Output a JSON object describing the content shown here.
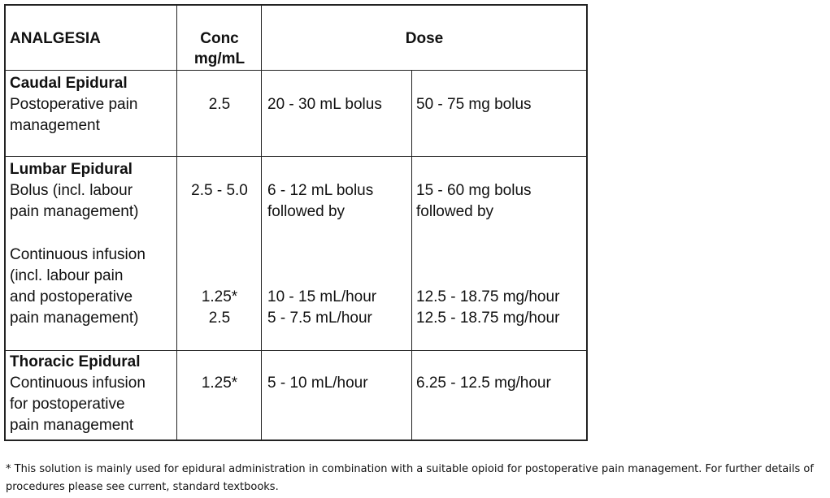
{
  "header": {
    "analgesia": "ANALGESIA",
    "conc": "Conc",
    "conc_unit": "mg/mL",
    "dose": "Dose"
  },
  "rows": [
    {
      "title": "Caudal Epidural",
      "lines": [
        "Postoperative pain",
        "management"
      ],
      "conc": [
        "2.5"
      ],
      "dose_ml": [
        "20 - 30 mL bolus"
      ],
      "dose_mg": [
        "50 - 75 mg bolus"
      ]
    },
    {
      "title": "Lumbar Epidural",
      "lines": [
        "Bolus (incl. labour",
        "pain management)",
        "Continuous infusion",
        "(incl. labour pain",
        "and postoperative",
        "pain management)"
      ],
      "conc": [
        "2.5 - 5.0",
        "1.25*",
        "2.5"
      ],
      "dose_ml": [
        "6 - 12 mL bolus",
        "followed by",
        "10 - 15 mL/hour",
        "5 - 7.5 mL/hour"
      ],
      "dose_mg": [
        "15 - 60 mg bolus",
        "followed by",
        "12.5 - 18.75 mg/hour",
        "12.5 - 18.75 mg/hour"
      ]
    },
    {
      "title": "Thoracic Epidural",
      "lines": [
        "Continuous infusion",
        "for postoperative",
        "pain management"
      ],
      "conc": [
        "1.25*"
      ],
      "dose_ml": [
        "5 - 10 mL/hour"
      ],
      "dose_mg": [
        "6.25 - 12.5 mg/hour"
      ]
    }
  ],
  "footnote": "* This solution is mainly used for epidural administration in combination with a suitable opioid for postoperative pain management. For further details of procedures please see current, standard textbooks."
}
